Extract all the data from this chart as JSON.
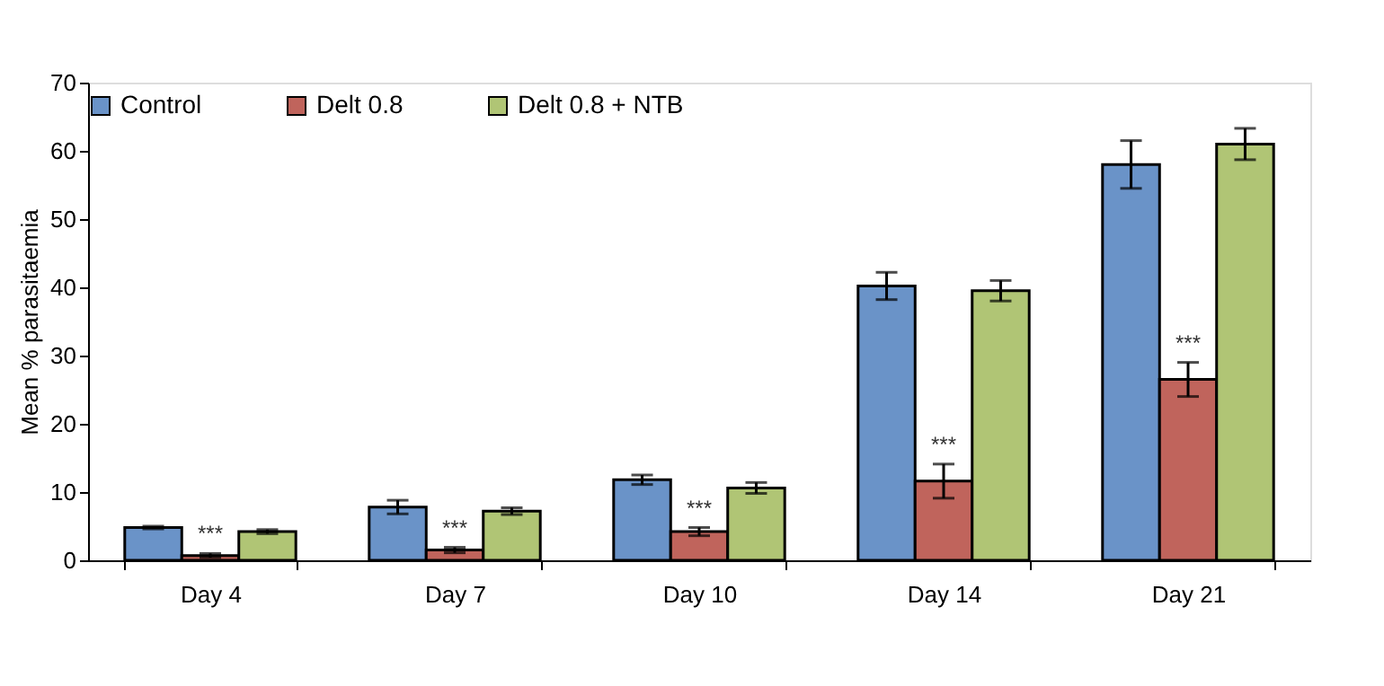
{
  "chart_data": {
    "type": "bar",
    "ylabel": "Mean % parasitaemia",
    "categories": [
      "Day 4",
      "Day 7",
      "Day 10",
      "Day 14",
      "Day 21"
    ],
    "series": [
      {
        "name": "Control",
        "color": "#6a93c8",
        "values": [
          4.8,
          7.8,
          11.8,
          40.2,
          58
        ],
        "errors": [
          0.2,
          1.0,
          0.7,
          2.0,
          3.5
        ]
      },
      {
        "name": "Delt 0.8",
        "color": "#c0645c",
        "values": [
          0.7,
          1.5,
          4.2,
          11.6,
          26.5
        ],
        "errors": [
          0.3,
          0.4,
          0.6,
          2.5,
          2.5
        ]
      },
      {
        "name": "Delt 0.8 + NTB",
        "color": "#b0c575",
        "values": [
          4.2,
          7.2,
          10.6,
          39.5,
          61
        ],
        "errors": [
          0.3,
          0.5,
          0.8,
          1.5,
          2.3
        ]
      }
    ],
    "ylim": [
      0,
      70
    ],
    "yticks": [
      0,
      10,
      20,
      30,
      40,
      50,
      60,
      70
    ],
    "annotations": [
      {
        "text": "***",
        "x": "Day 4",
        "y": 1.0
      },
      {
        "text": "***",
        "x": "Day 7",
        "y": 1.9
      },
      {
        "text": "***",
        "x": "Day 10",
        "y": 4.8
      },
      {
        "text": "***",
        "x": "Day 14",
        "y": 14.1
      },
      {
        "text": "***",
        "x": "Day 21",
        "y": 29
      }
    ],
    "grid": false,
    "legend": "top"
  }
}
